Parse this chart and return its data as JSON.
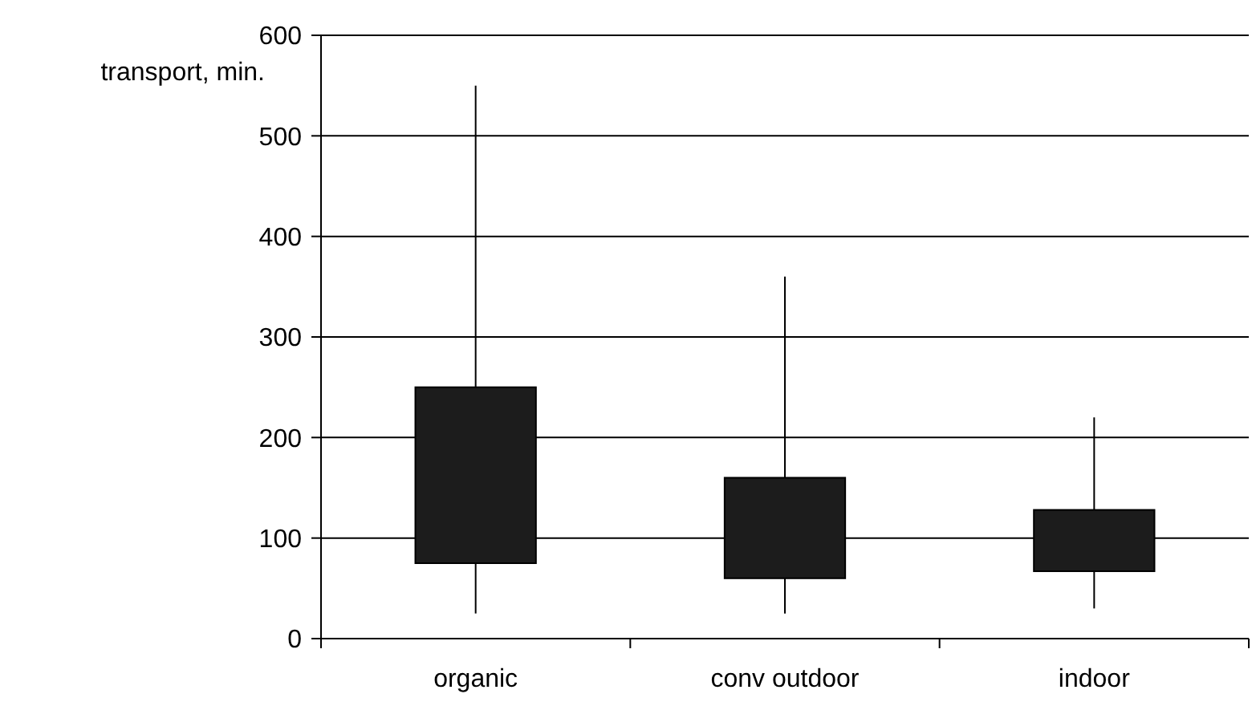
{
  "chart_data": {
    "type": "candlestick",
    "ylabel": "transport, min.",
    "categories": [
      "organic",
      "conv outdoor",
      "indoor"
    ],
    "ohlc": [
      [
        250,
        550,
        25,
        75
      ],
      [
        160,
        360,
        25,
        60
      ],
      [
        128,
        220,
        30,
        67
      ]
    ],
    "color": "#1c1c1c",
    "ylim": [
      0,
      600
    ],
    "yticks": [
      0,
      100,
      200,
      300,
      400,
      500,
      600
    ],
    "grid": "y"
  }
}
